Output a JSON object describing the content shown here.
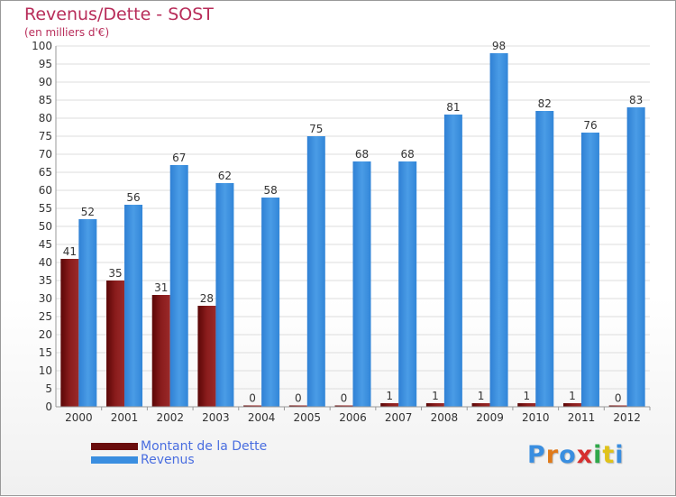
{
  "title": "Revenus/Dette - SOST",
  "subtitle": "(en milliers d'€)",
  "brand_logo": "Proxiti",
  "colors": {
    "dette": "#7a1212",
    "revenus": "#3a8ee0",
    "title": "#b82d5a",
    "legend_text": "#4a6ee0"
  },
  "chart_data": {
    "type": "bar",
    "title": "Revenus/Dette - SOST",
    "subtitle": "(en milliers d'€)",
    "xlabel": "",
    "ylabel": "",
    "ylim": [
      0,
      100
    ],
    "ytick_step": 5,
    "grid": true,
    "legend_position": "bottom-left",
    "categories": [
      "2000",
      "2001",
      "2002",
      "2003",
      "2004",
      "2005",
      "2006",
      "2007",
      "2008",
      "2009",
      "2010",
      "2011",
      "2012"
    ],
    "series": [
      {
        "name": "Montant de la Dette",
        "values": [
          41,
          35,
          31,
          28,
          0,
          0,
          0,
          1,
          1,
          1,
          1,
          1,
          0
        ]
      },
      {
        "name": "Revenus",
        "values": [
          52,
          56,
          67,
          62,
          58,
          75,
          68,
          68,
          81,
          98,
          82,
          76,
          83
        ]
      }
    ]
  }
}
